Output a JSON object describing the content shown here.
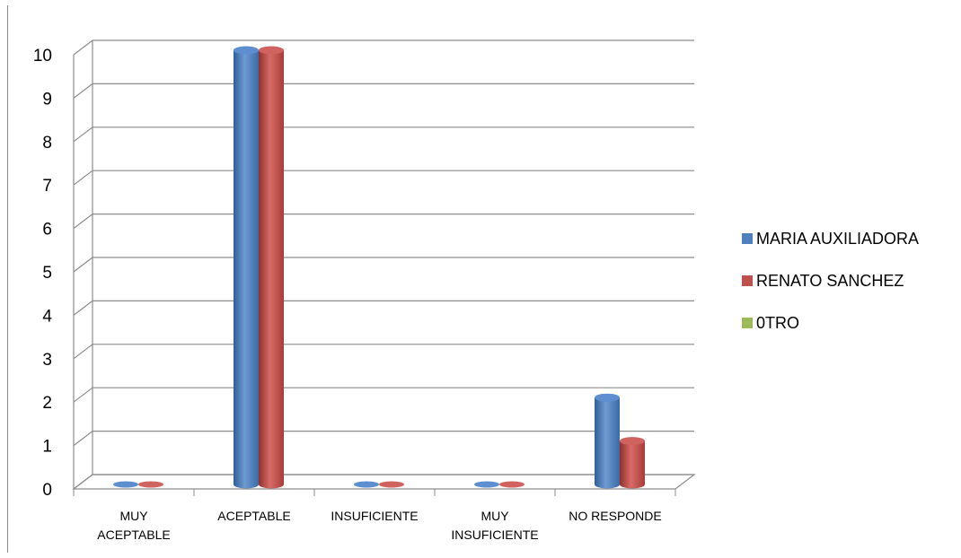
{
  "chart_data": {
    "type": "bar",
    "categories": [
      [
        "MUY",
        "ACEPTABLE"
      ],
      [
        "ACEPTABLE"
      ],
      [
        "INSUFICIENTE"
      ],
      [
        "MUY",
        "INSUFICIENTE"
      ],
      [
        "NO RESPONDE"
      ]
    ],
    "series": [
      {
        "name": "MARIA AUXILIADORA",
        "color": "#4f81bd",
        "values": [
          0,
          10,
          0,
          0,
          2
        ]
      },
      {
        "name": "RENATO SANCHEZ",
        "color": "#c0504d",
        "values": [
          0,
          10,
          0,
          0,
          1
        ]
      },
      {
        "name": "0TRO",
        "color": "#9bbb59",
        "values": [
          0,
          0,
          0,
          0,
          0
        ]
      }
    ],
    "ylim": [
      0,
      10
    ],
    "yticks": [
      0,
      1,
      2,
      3,
      4,
      5,
      6,
      7,
      8,
      9,
      10
    ],
    "grid": true,
    "legend_position": "right"
  }
}
